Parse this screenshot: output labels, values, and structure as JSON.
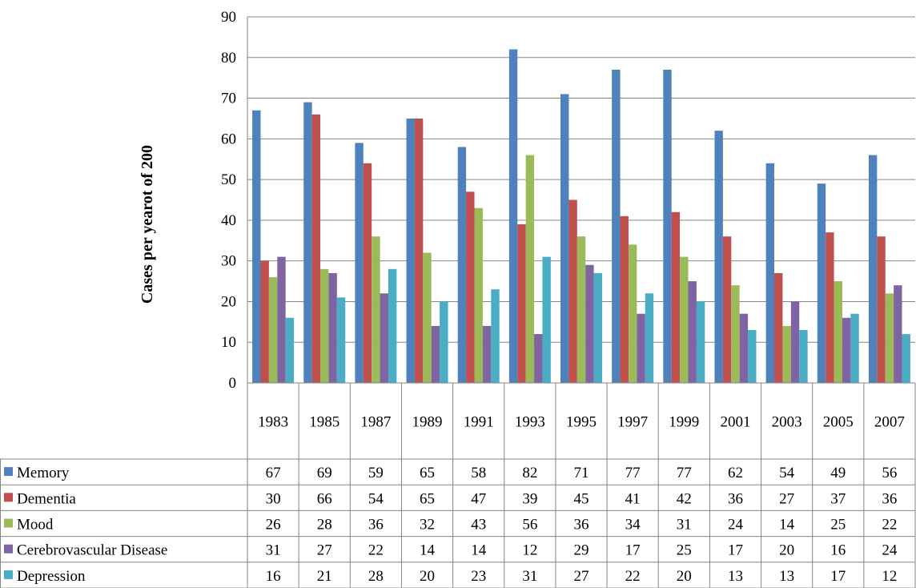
{
  "chart_data": {
    "type": "bar",
    "ylabel": "Cases per yearot of 200",
    "xlabel": "",
    "ylim": [
      0,
      90
    ],
    "yticks": [
      0,
      10,
      20,
      30,
      40,
      50,
      60,
      70,
      80,
      90
    ],
    "grid": true,
    "legend": "data-table-left",
    "categories": [
      "1983",
      "1985",
      "1987",
      "1989",
      "1991",
      "1993",
      "1995",
      "1997",
      "1999",
      "2001",
      "2003",
      "2005",
      "2007"
    ],
    "series": [
      {
        "name": "Memory",
        "color": "#4F81BD",
        "values": [
          67,
          69,
          59,
          65,
          58,
          82,
          71,
          77,
          77,
          62,
          54,
          49,
          56
        ]
      },
      {
        "name": "Dementia",
        "color": "#C0504D",
        "values": [
          30,
          66,
          54,
          65,
          47,
          39,
          45,
          41,
          42,
          36,
          27,
          37,
          36
        ]
      },
      {
        "name": "Mood",
        "color": "#9BBB59",
        "values": [
          26,
          28,
          36,
          32,
          43,
          56,
          36,
          34,
          31,
          24,
          14,
          25,
          22
        ]
      },
      {
        "name": "Cerebrovascular Disease",
        "color": "#8064A2",
        "values": [
          31,
          27,
          22,
          14,
          14,
          12,
          29,
          17,
          25,
          17,
          20,
          16,
          24
        ]
      },
      {
        "name": "Depression",
        "color": "#4BACC6",
        "values": [
          16,
          21,
          28,
          20,
          23,
          31,
          27,
          22,
          20,
          13,
          13,
          17,
          12
        ]
      }
    ]
  }
}
